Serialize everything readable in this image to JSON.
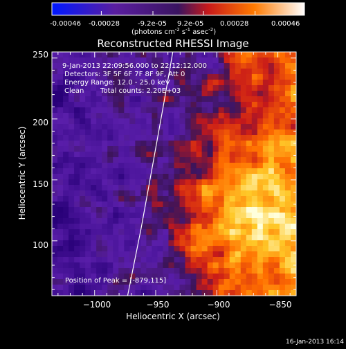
{
  "colorbar": {
    "ticks": [
      "-0.00046",
      "-0.00028",
      "-9.2e-05",
      "9.2e-05",
      "0.00028",
      "0.00046"
    ],
    "units_prefix": "(photons cm",
    "units_exp1": "-2",
    "units_mid": " s",
    "units_exp2": "-1",
    "units_mid2": " asec",
    "units_exp3": "-2",
    "units_suffix": ")",
    "range": [
      -0.00046,
      0.00046
    ]
  },
  "chart_data": {
    "type": "heatmap",
    "title": "Reconstructed RHESSI Image",
    "xlabel": "Heliocentric X (arcsec)",
    "ylabel": "Heliocentric Y (arcsec)",
    "xlim": [
      -1035,
      -835
    ],
    "ylim": [
      55,
      255
    ],
    "xticks": [
      -1000,
      -950,
      -900,
      -850
    ],
    "xtick_labels": [
      "−1000",
      "−950",
      "−900",
      "−850"
    ],
    "yticks": [
      100,
      150,
      200,
      250
    ],
    "ytick_labels": [
      "100",
      "150",
      "200",
      "250"
    ],
    "annotations": {
      "time": "9-Jan-2013 22:09:56.000 to 22:12:12.000",
      "detectors": "Detectors: 3F 5F 6F 7F 8F 9F, Att 0",
      "energy": "Energy Range: 12.0 - 25.0 keV",
      "method": "Clean",
      "counts": "Total counts: 2.20E+03",
      "peak": "Position of Peak = [-879,115]"
    },
    "peak": [
      -879,
      115
    ],
    "limb_curve": [
      [
        -973,
        55
      ],
      [
        -962,
        110
      ],
      [
        -952,
        165
      ],
      [
        -943,
        215
      ],
      [
        -936,
        255
      ]
    ],
    "grid": false
  },
  "footer": {
    "timestamp": "16-Jan-2013 16:14"
  }
}
